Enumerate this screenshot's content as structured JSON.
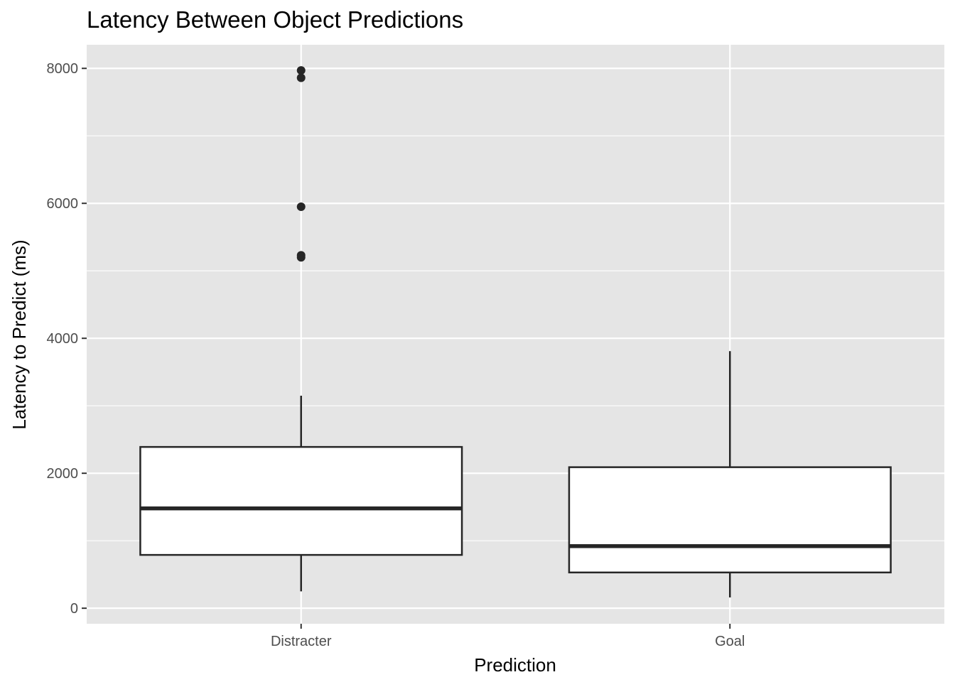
{
  "chart_data": {
    "type": "boxplot",
    "title": "Latency Between Object Predictions",
    "xlabel": "Prediction",
    "ylabel": "Latency to Predict (ms)",
    "categories": [
      "Distracter",
      "Goal"
    ],
    "boxes": [
      {
        "category": "Distracter",
        "whisker_low": 250,
        "q1": 790,
        "median": 1480,
        "q3": 2390,
        "whisker_high": 3150,
        "outliers": [
          5200,
          5230,
          5950,
          7860,
          7970
        ]
      },
      {
        "category": "Goal",
        "whisker_low": 160,
        "q1": 530,
        "median": 920,
        "q3": 2090,
        "whisker_high": 3810,
        "outliers": []
      }
    ],
    "ylim": [
      -230,
      8350
    ],
    "y_ticks": [
      0,
      2000,
      4000,
      6000,
      8000
    ],
    "y_tick_labels": [
      "0",
      "2000",
      "4000",
      "6000",
      "8000"
    ],
    "y_minor_ticks": [
      1000,
      3000,
      5000,
      7000
    ],
    "grid": true,
    "legend": "none",
    "colors": {
      "panel": "#e5e5e5",
      "grid": "#ffffff",
      "box_fill": "#ffffff",
      "box_stroke": "#262626",
      "tick_text": "#4d4d4d"
    }
  }
}
